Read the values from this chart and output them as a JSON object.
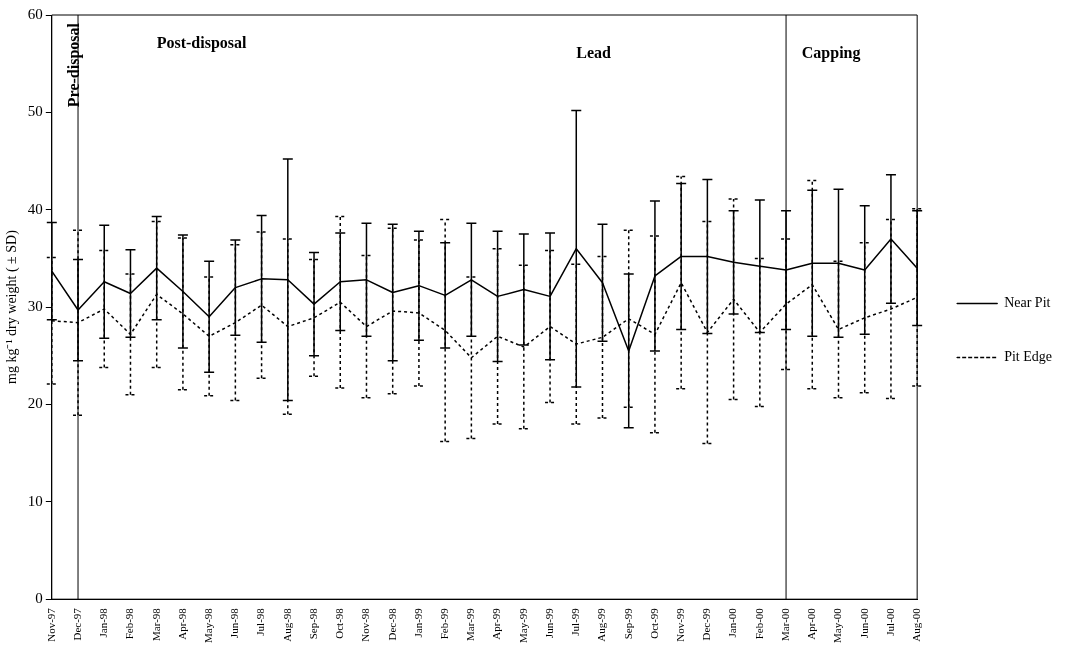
{
  "chart_data": {
    "type": "line",
    "ylabel": "mg kg⁻¹ dry weight ( ± SD)",
    "categories": [
      "Nov-97",
      "Dec-97",
      "Jan-98",
      "Feb-98",
      "Mar-98",
      "Apr-98",
      "May-98",
      "Jun-98",
      "Jul-98",
      "Aug-98",
      "Sep-98",
      "Oct-98",
      "Nov-98",
      "Dec-98",
      "Jan-99",
      "Feb-99",
      "Mar-99",
      "Apr-99",
      "May-99",
      "Jun-99",
      "Jul-99",
      "Aug-99",
      "Sep-99",
      "Oct-99",
      "Nov-99",
      "Dec-99",
      "Jan-00",
      "Feb-00",
      "Mar-00",
      "Apr-00",
      "May-00",
      "Jun-00",
      "Jul-00",
      "Aug-00"
    ],
    "series": [
      {
        "name": "Near Pit",
        "color": "#000000",
        "line_style": "solid",
        "values": [
          33.7,
          29.7,
          32.6,
          31.4,
          34.0,
          31.6,
          29.0,
          32.0,
          32.9,
          32.8,
          30.3,
          32.6,
          32.8,
          31.5,
          32.2,
          31.2,
          32.8,
          31.1,
          31.8,
          31.1,
          36.0,
          32.5,
          25.5,
          33.2,
          35.2,
          35.2,
          34.6,
          34.2,
          33.8,
          34.5,
          34.5,
          33.8,
          37.0,
          34.0
        ],
        "errors": [
          5.0,
          5.2,
          5.8,
          4.5,
          5.3,
          5.8,
          5.7,
          4.9,
          6.5,
          12.4,
          5.3,
          5.0,
          5.8,
          7.0,
          5.6,
          5.4,
          5.8,
          6.7,
          5.7,
          6.5,
          14.2,
          6.0,
          7.9,
          7.7,
          7.5,
          7.9,
          5.3,
          6.8,
          6.1,
          7.5,
          7.6,
          6.6,
          6.6,
          5.9
        ]
      },
      {
        "name": "Pit Edge",
        "color": "#000000",
        "line_style": "dotted",
        "values": [
          28.6,
          28.4,
          29.8,
          27.2,
          31.3,
          29.3,
          27.0,
          28.4,
          30.2,
          28.0,
          28.9,
          30.5,
          28.0,
          29.6,
          29.4,
          27.6,
          24.8,
          27.0,
          25.9,
          28.0,
          26.2,
          26.9,
          28.8,
          27.2,
          32.5,
          27.4,
          30.8,
          27.4,
          30.3,
          32.3,
          27.7,
          28.9,
          29.8,
          31.0
        ],
        "errors": [
          6.5,
          9.5,
          6.0,
          6.2,
          7.5,
          7.8,
          6.1,
          8.0,
          7.5,
          9.0,
          6.0,
          8.8,
          7.3,
          8.5,
          7.5,
          11.4,
          8.3,
          9.0,
          8.4,
          7.8,
          8.2,
          8.3,
          9.1,
          10.1,
          10.9,
          11.4,
          10.3,
          7.6,
          6.7,
          10.7,
          7.0,
          7.7,
          9.2,
          9.1
        ]
      }
    ],
    "ylim": [
      0,
      60
    ],
    "yticks": [
      0,
      10,
      20,
      30,
      40,
      50,
      60
    ],
    "grid": false,
    "legend": "right",
    "marker": "none",
    "ref_lines": [
      {
        "axis": "x",
        "value": "Dec-97",
        "color": "#000000"
      },
      {
        "axis": "x",
        "value": "Mar-00",
        "color": "#000000"
      }
    ],
    "annotations": [
      "Pre-disposal",
      "Post-disposal",
      "Lead",
      "Capping"
    ]
  }
}
